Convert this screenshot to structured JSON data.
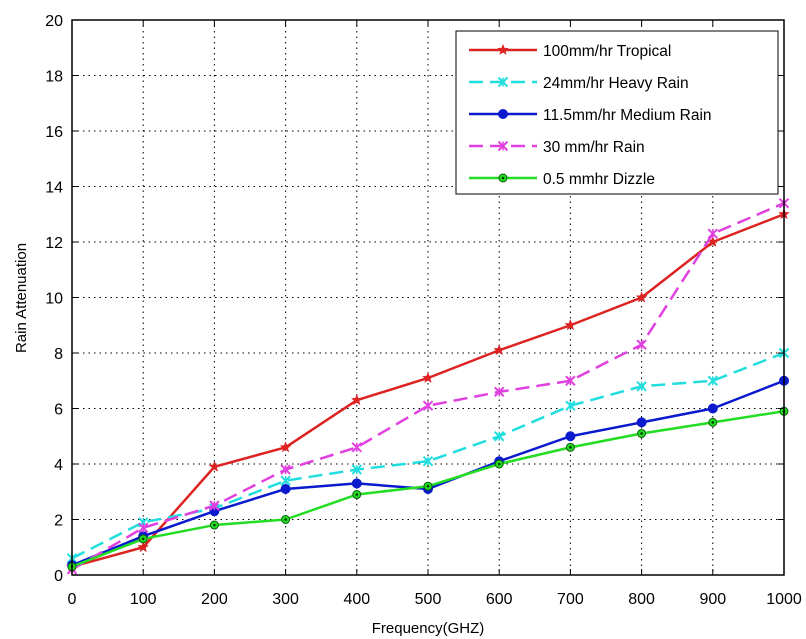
{
  "chart_data": {
    "type": "line",
    "title": "",
    "xlabel": "Frequency(GHZ)",
    "ylabel": "Rain Attenuation",
    "xlim": [
      0,
      1000
    ],
    "ylim": [
      0,
      20
    ],
    "x_ticks": [
      0,
      100,
      200,
      300,
      400,
      500,
      600,
      700,
      800,
      900,
      1000
    ],
    "y_ticks": [
      0,
      2,
      4,
      6,
      8,
      10,
      12,
      14,
      16,
      18,
      20
    ],
    "grid": true,
    "legend_position": "top-right",
    "x": [
      0,
      100,
      200,
      300,
      400,
      500,
      600,
      700,
      800,
      900,
      1000
    ],
    "series": [
      {
        "name": "100mm/hr Tropical",
        "color": "#dd2222",
        "dash": "solid",
        "marker": "star",
        "values": [
          0.3,
          1.0,
          3.9,
          4.6,
          6.3,
          7.1,
          8.1,
          9.0,
          10.0,
          12.0,
          13.0
        ]
      },
      {
        "name": "24mm/hr Heavy Rain",
        "color": "#22dddd",
        "dash": "dashed",
        "marker": "x",
        "values": [
          0.6,
          1.9,
          2.4,
          3.4,
          3.8,
          4.1,
          5.0,
          6.1,
          6.8,
          7.0,
          8.0
        ]
      },
      {
        "name": "11.5mm/hr Medium Rain",
        "color": "#0a1acc",
        "dash": "solid",
        "marker": "circle",
        "values": [
          0.35,
          1.4,
          2.3,
          3.1,
          3.3,
          3.1,
          4.1,
          5.0,
          5.5,
          6.0,
          7.0
        ]
      },
      {
        "name": "30 mm/hr Rain",
        "color": "#e040e0",
        "dash": "dashed",
        "marker": "x",
        "values": [
          0.2,
          1.7,
          2.5,
          3.8,
          4.6,
          6.1,
          6.6,
          7.0,
          8.3,
          12.3,
          13.4
        ]
      },
      {
        "name": "0.5 mmhr Dizzle",
        "color": "#22dd22",
        "dash": "solid",
        "marker": "circle-dot",
        "values": [
          0.3,
          1.3,
          1.8,
          2.0,
          2.9,
          3.2,
          4.0,
          4.6,
          5.1,
          5.5,
          5.9
        ]
      }
    ]
  }
}
